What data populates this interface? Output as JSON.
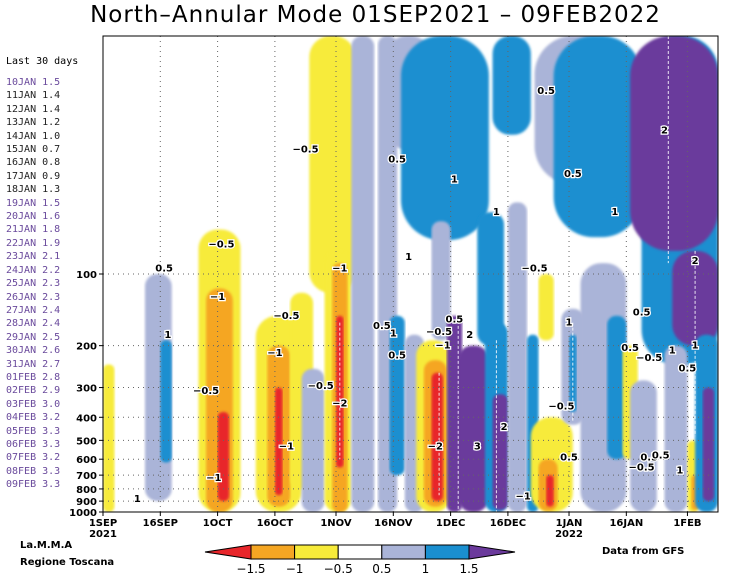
{
  "chart_data": {
    "type": "heatmap",
    "title": "North–Annular Mode 01SEP2021 – 09FEB2022",
    "x_ticks": [
      {
        "date": "2021-09-01",
        "label": "1SEP",
        "sub": "2021"
      },
      {
        "date": "2021-09-16",
        "label": "16SEP",
        "sub": ""
      },
      {
        "date": "2021-10-01",
        "label": "1OCT",
        "sub": ""
      },
      {
        "date": "2021-10-16",
        "label": "16OCT",
        "sub": ""
      },
      {
        "date": "2021-11-01",
        "label": "1NOV",
        "sub": ""
      },
      {
        "date": "2021-11-16",
        "label": "16NOV",
        "sub": ""
      },
      {
        "date": "2021-12-01",
        "label": "1DEC",
        "sub": ""
      },
      {
        "date": "2021-12-16",
        "label": "16DEC",
        "sub": ""
      },
      {
        "date": "2022-01-01",
        "label": "1JAN",
        "sub": "2022"
      },
      {
        "date": "2022-01-16",
        "label": "16JAN",
        "sub": ""
      },
      {
        "date": "2022-02-01",
        "label": "1FEB",
        "sub": ""
      }
    ],
    "xlim": [
      "2021-09-01",
      "2022-02-09"
    ],
    "y_axis": {
      "scale": "log",
      "inverted": true,
      "ylim": [
        1000,
        10
      ]
    },
    "y_ticks": [
      1000,
      900,
      800,
      700,
      600,
      500,
      400,
      300,
      200,
      100
    ],
    "grid": true,
    "colorbar": {
      "levels": [
        "−1.5",
        "−1",
        "−0.5",
        "0.5",
        "1",
        "1.5"
      ],
      "colors": [
        "#e8262b",
        "#f5a623",
        "#f7eb3a",
        "#ffffff",
        "#aab4d8",
        "#1a8fd0",
        "#6b3a9c"
      ]
    },
    "contour_labels": [
      {
        "text": "−0.5",
        "date": "2021-10-24",
        "p": 30
      },
      {
        "text": "−0.5",
        "date": "2021-10-02",
        "p": 75
      },
      {
        "text": "0.5",
        "date": "2021-09-17",
        "p": 95
      },
      {
        "text": "−1",
        "date": "2021-10-01",
        "p": 125
      },
      {
        "text": "1",
        "date": "2021-09-18",
        "p": 180
      },
      {
        "text": "−0.5",
        "date": "2021-10-19",
        "p": 150
      },
      {
        "text": "−1",
        "date": "2021-11-02",
        "p": 95
      },
      {
        "text": "0.5",
        "date": "2021-11-13",
        "p": 165
      },
      {
        "text": "1",
        "date": "2021-11-16",
        "p": 178
      },
      {
        "text": "0.5",
        "date": "2021-11-17",
        "p": 220
      },
      {
        "text": "−1",
        "date": "2021-10-16",
        "p": 215
      },
      {
        "text": "−0.5",
        "date": "2021-09-28",
        "p": 310
      },
      {
        "text": "−0.5",
        "date": "2021-10-28",
        "p": 295
      },
      {
        "text": "−2",
        "date": "2021-11-02",
        "p": 350
      },
      {
        "text": "−1",
        "date": "2021-10-19",
        "p": 530
      },
      {
        "text": "−1",
        "date": "2021-09-30",
        "p": 720
      },
      {
        "text": "1",
        "date": "2021-09-10",
        "p": 880
      },
      {
        "text": "0.5",
        "date": "2021-11-17",
        "p": 33
      },
      {
        "text": "1",
        "date": "2021-12-02",
        "p": 40
      },
      {
        "text": "1",
        "date": "2021-12-13",
        "p": 55
      },
      {
        "text": "1",
        "date": "2021-11-20",
        "p": 85
      },
      {
        "text": "0.5",
        "date": "2021-12-26",
        "p": 17
      },
      {
        "text": "0.5",
        "date": "2022-01-02",
        "p": 38
      },
      {
        "text": "1",
        "date": "2022-01-13",
        "p": 55
      },
      {
        "text": "2",
        "date": "2022-01-26",
        "p": 25
      },
      {
        "text": "2",
        "date": "2022-02-03",
        "p": 88
      },
      {
        "text": "−0.5",
        "date": "2021-12-23",
        "p": 95
      },
      {
        "text": "0.5",
        "date": "2022-01-20",
        "p": 145
      },
      {
        "text": "0.5",
        "date": "2021-12-02",
        "p": 155
      },
      {
        "text": "−0.5",
        "date": "2021-11-28",
        "p": 175
      },
      {
        "text": "−1",
        "date": "2021-11-29",
        "p": 200
      },
      {
        "text": "2",
        "date": "2021-12-06",
        "p": 180
      },
      {
        "text": "1",
        "date": "2022-01-01",
        "p": 160
      },
      {
        "text": "0.5",
        "date": "2022-01-17",
        "p": 205
      },
      {
        "text": "−0.5",
        "date": "2022-01-22",
        "p": 225
      },
      {
        "text": "1",
        "date": "2022-01-28",
        "p": 210
      },
      {
        "text": "1",
        "date": "2022-02-03",
        "p": 200
      },
      {
        "text": "0.5",
        "date": "2022-02-01",
        "p": 250
      },
      {
        "text": "−0.5",
        "date": "2021-12-30",
        "p": 360
      },
      {
        "text": "2",
        "date": "2021-12-15",
        "p": 440
      },
      {
        "text": "3",
        "date": "2021-12-08",
        "p": 530
      },
      {
        "text": "−2",
        "date": "2021-11-27",
        "p": 530
      },
      {
        "text": "0.5",
        "date": "2022-01-01",
        "p": 590
      },
      {
        "text": "0.5",
        "date": "2022-01-22",
        "p": 590
      },
      {
        "text": "−0.5",
        "date": "2022-01-20",
        "p": 650
      },
      {
        "text": "0.5",
        "date": "2022-01-25",
        "p": 580
      },
      {
        "text": "1",
        "date": "2022-01-30",
        "p": 670
      },
      {
        "text": "−1",
        "date": "2021-12-20",
        "p": 860
      }
    ]
  },
  "last_days": {
    "heading": "Last 30 days",
    "entries": [
      {
        "date": "10JAN",
        "value": "1.5",
        "tone": "purple"
      },
      {
        "date": "11JAN",
        "value": "1.4",
        "tone": "dark"
      },
      {
        "date": "12JAN",
        "value": "1.4",
        "tone": "dark"
      },
      {
        "date": "13JAN",
        "value": "1.2",
        "tone": "dark"
      },
      {
        "date": "14JAN",
        "value": "1.0",
        "tone": "dark"
      },
      {
        "date": "15JAN",
        "value": "0.7",
        "tone": "dark"
      },
      {
        "date": "16JAN",
        "value": "0.8",
        "tone": "dark"
      },
      {
        "date": "17JAN",
        "value": "0.9",
        "tone": "dark"
      },
      {
        "date": "18JAN",
        "value": "1.3",
        "tone": "dark"
      },
      {
        "date": "19JAN",
        "value": "1.5",
        "tone": "purple"
      },
      {
        "date": "20JAN",
        "value": "1.6",
        "tone": "purple"
      },
      {
        "date": "21JAN",
        "value": "1.8",
        "tone": "purple"
      },
      {
        "date": "22JAN",
        "value": "1.9",
        "tone": "purple"
      },
      {
        "date": "23JAN",
        "value": "2.1",
        "tone": "purple"
      },
      {
        "date": "24JAN",
        "value": "2.2",
        "tone": "purple"
      },
      {
        "date": "25JAN",
        "value": "2.3",
        "tone": "purple"
      },
      {
        "date": "26JAN",
        "value": "2.3",
        "tone": "purple"
      },
      {
        "date": "27JAN",
        "value": "2.4",
        "tone": "purple"
      },
      {
        "date": "28JAN",
        "value": "2.4",
        "tone": "purple"
      },
      {
        "date": "29JAN",
        "value": "2.5",
        "tone": "purple"
      },
      {
        "date": "30JAN",
        "value": "2.6",
        "tone": "purple"
      },
      {
        "date": "31JAN",
        "value": "2.7",
        "tone": "purple"
      },
      {
        "date": "01FEB",
        "value": "2.8",
        "tone": "purple"
      },
      {
        "date": "02FEB",
        "value": "2.9",
        "tone": "purple"
      },
      {
        "date": "03FEB",
        "value": "3.0",
        "tone": "purple"
      },
      {
        "date": "04FEB",
        "value": "3.2",
        "tone": "purple"
      },
      {
        "date": "05FEB",
        "value": "3.3",
        "tone": "purple"
      },
      {
        "date": "06FEB",
        "value": "3.3",
        "tone": "purple"
      },
      {
        "date": "07FEB",
        "value": "3.2",
        "tone": "purple"
      },
      {
        "date": "08FEB",
        "value": "3.3",
        "tone": "purple"
      },
      {
        "date": "09FEB",
        "value": "3.3",
        "tone": "purple"
      }
    ]
  },
  "credits": {
    "line1": "La.M.M.A",
    "line2": "Regione Toscana",
    "source": "Data from GFS"
  }
}
